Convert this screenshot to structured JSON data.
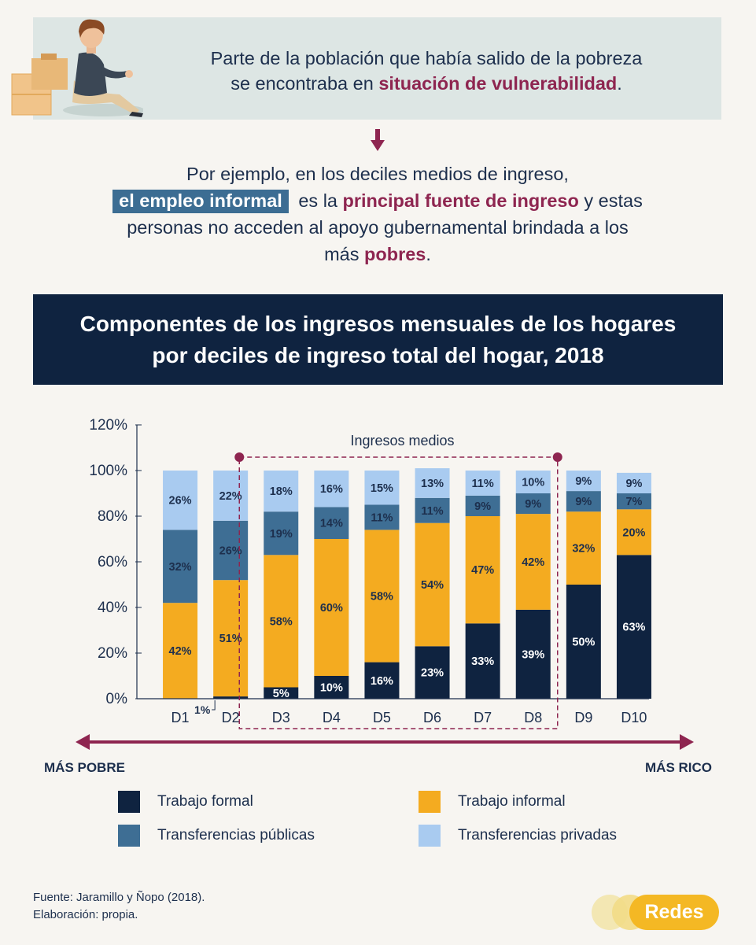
{
  "intro": {
    "line1": "Parte de la población que había salido de la pobreza",
    "line2_pre": "se encontraba en ",
    "line2_highlight": "situación de vulnerabilidad",
    "line2_post": "."
  },
  "example": {
    "line1": "Por ejemplo, en los deciles medios de ingreso,",
    "chip": "el empleo informal",
    "line2_mid": "es la ",
    "line2_highlight": "principal fuente de ingreso",
    "line2_post": " y estas",
    "line3": "personas no acceden al apoyo gubernamental brindada a los",
    "line4_pre": "más ",
    "line4_highlight": "pobres",
    "line4_post": "."
  },
  "title": {
    "line1": "Componentes de los ingresos mensuales de los hogares",
    "line2": "por deciles de ingreso total del hogar, 2018"
  },
  "chart_data": {
    "type": "bar",
    "stacked": true,
    "categories": [
      "D1",
      "D2",
      "D3",
      "D4",
      "D5",
      "D6",
      "D7",
      "D8",
      "D9",
      "D10"
    ],
    "series": [
      {
        "name": "Trabajo formal",
        "values": [
          0,
          1,
          5,
          10,
          16,
          23,
          33,
          39,
          50,
          63
        ],
        "labels": [
          "",
          "1%",
          "5%",
          "10%",
          "16%",
          "23%",
          "33%",
          "39%",
          "50%",
          "63%"
        ],
        "color": "#0f2340"
      },
      {
        "name": "Trabajo informal",
        "values": [
          42,
          51,
          58,
          60,
          58,
          54,
          47,
          42,
          32,
          20
        ],
        "labels": [
          "42%",
          "51%",
          "58%",
          "60%",
          "58%",
          "54%",
          "47%",
          "42%",
          "32%",
          "20%"
        ],
        "color": "#f4ab20"
      },
      {
        "name": "Transferencias públicas",
        "values": [
          32,
          26,
          19,
          14,
          11,
          11,
          9,
          9,
          9,
          7
        ],
        "labels": [
          "32%",
          "26%",
          "19%",
          "14%",
          "11%",
          "11%",
          "9%",
          "9%",
          "9%",
          "7%"
        ],
        "color": "#3e6e94"
      },
      {
        "name": "Transferencias privadas",
        "values": [
          26,
          22,
          18,
          16,
          15,
          13,
          11,
          10,
          9,
          9
        ],
        "labels": [
          "26%",
          "22%",
          "18%",
          "16%",
          "15%",
          "13%",
          "11%",
          "10%",
          "9%",
          "9%"
        ],
        "color": "#a9cbf0"
      }
    ],
    "yticks": [
      "0%",
      "20%",
      "40%",
      "60%",
      "80%",
      "100%",
      "120%"
    ],
    "ylim": [
      0,
      120
    ],
    "grid": false,
    "annotation": {
      "label": "Ingresos medios",
      "from": "D3",
      "to": "D8"
    },
    "axis_extremes": {
      "left": "MÁS POBRE",
      "right": "MÁS RICO"
    }
  },
  "legend": {
    "formal": "Trabajo formal",
    "informal": "Trabajo informal",
    "publicas": "Transferencias públicas",
    "privadas": "Transferencias privadas"
  },
  "footer": {
    "source": "Fuente: Jaramillo y Ñopo (2018).",
    "elaboration": "Elaboración: propia."
  },
  "brand": {
    "name": "Redes"
  },
  "colors": {
    "accent_red": "#8e2550",
    "navy": "#0f2340",
    "chip_blue": "#3c6d93",
    "orange": "#f4ab20",
    "light_blue": "#a9cbf0",
    "brand_yellow": "#f4b824"
  },
  "icons": {
    "illustration": "tired-person-with-boxes-illustration",
    "arrow": "arrow-down-icon"
  }
}
